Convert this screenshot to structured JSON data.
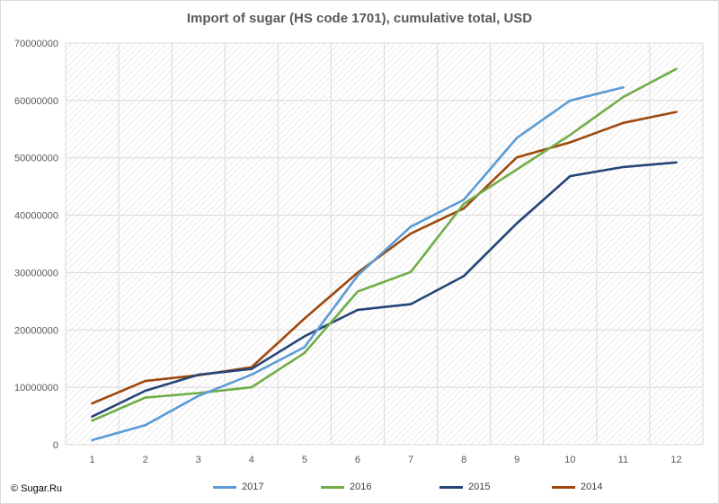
{
  "title": "Import of sugar (HS code 1701), cumulative total, USD",
  "copyright": "© Sugar.Ru",
  "colors": {
    "grid": "#d9d9d9",
    "hatch": "#e4e4e4",
    "axis_text": "#595959"
  },
  "chart_data": {
    "type": "line",
    "title": "Import of sugar (HS code 1701), cumulative total, USD",
    "xlabel": "",
    "ylabel": "",
    "x": [
      1,
      2,
      3,
      4,
      5,
      6,
      7,
      8,
      9,
      10,
      11,
      12
    ],
    "x_tick_labels": [
      "1",
      "2",
      "3",
      "4",
      "5",
      "6",
      "7",
      "8",
      "9",
      "10",
      "11",
      "12"
    ],
    "ylim": [
      0,
      70000000
    ],
    "y_ticks": [
      0,
      10000000,
      20000000,
      30000000,
      40000000,
      50000000,
      60000000,
      70000000
    ],
    "y_tick_labels": [
      "0",
      "10000000",
      "20000000",
      "30000000",
      "40000000",
      "50000000",
      "60000000",
      "70000000"
    ],
    "grid": true,
    "legend_position": "bottom",
    "series": [
      {
        "name": "2017",
        "color": "#5b9bd5",
        "values": [
          800000,
          3400000,
          8500000,
          12200000,
          17000000,
          29500000,
          38000000,
          42700000,
          53500000,
          60000000,
          62300000,
          null
        ]
      },
      {
        "name": "2016",
        "color": "#70ad47",
        "values": [
          4200000,
          8200000,
          9000000,
          10000000,
          16000000,
          26700000,
          30100000,
          42000000,
          48000000,
          54000000,
          60600000,
          65500000
        ]
      },
      {
        "name": "2015",
        "color": "#264478",
        "values": [
          4900000,
          9400000,
          12200000,
          13200000,
          18900000,
          23500000,
          24500000,
          29400000,
          38600000,
          46800000,
          48400000,
          49200000
        ]
      },
      {
        "name": "2014",
        "color": "#9e480e",
        "values": [
          7200000,
          11100000,
          12100000,
          13500000,
          22000000,
          30000000,
          36800000,
          41200000,
          50100000,
          52700000,
          56100000,
          58000000
        ]
      }
    ]
  }
}
